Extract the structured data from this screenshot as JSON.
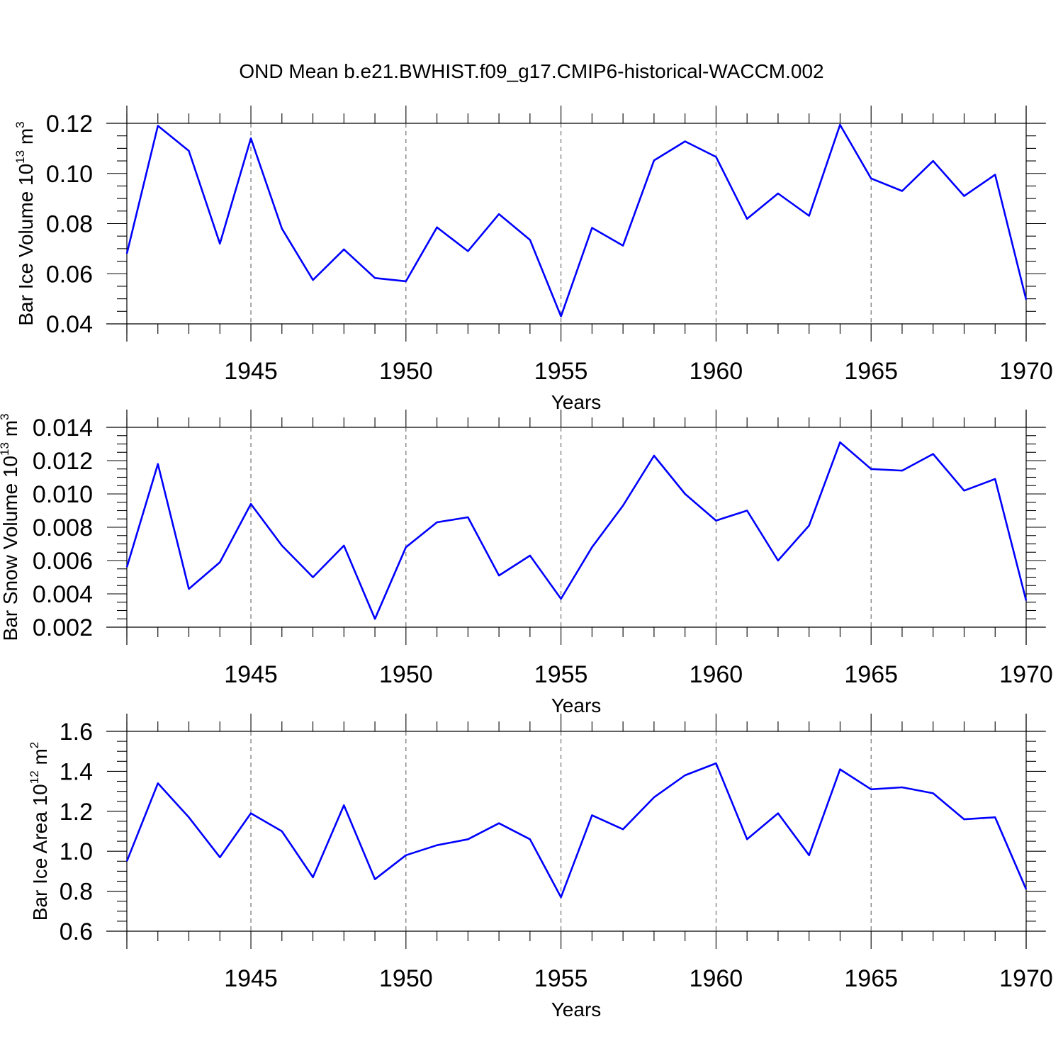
{
  "title": "OND Mean b.e21.BWHIST.f09_g17.CMIP6-historical-WACCM.002",
  "colors": {
    "line": "#0000ff",
    "axis": "#000000",
    "grid": "#555555"
  },
  "chart_data": [
    {
      "type": "line",
      "ylabel_main": "Bar Ice Volume 10",
      "ylabel_exp": "13",
      "ylabel_unit": " m",
      "ylabel_unit_exp": "3",
      "xlabel": "Years",
      "xlim": [
        1941,
        1970
      ],
      "ylim": [
        0.04,
        0.12
      ],
      "yticks": [
        0.04,
        0.06,
        0.08,
        0.1,
        0.12
      ],
      "yticklabels": [
        "0.04",
        "0.06",
        "0.08",
        "0.10",
        "0.12"
      ],
      "yminor": 0.005,
      "xticks": [
        1945,
        1950,
        1955,
        1960,
        1965,
        1970
      ],
      "xticklabels": [
        "1945",
        "1950",
        "1955",
        "1960",
        "1965",
        "1970"
      ],
      "gridx": [
        1945,
        1950,
        1955,
        1960,
        1965
      ],
      "x": [
        1941,
        1942,
        1943,
        1944,
        1945,
        1946,
        1947,
        1948,
        1949,
        1950,
        1951,
        1952,
        1953,
        1954,
        1955,
        1956,
        1957,
        1958,
        1959,
        1960,
        1961,
        1962,
        1963,
        1964,
        1965,
        1966,
        1967,
        1968,
        1969,
        1970
      ],
      "y": [
        0.068,
        0.119,
        0.109,
        0.072,
        0.114,
        0.078,
        0.0575,
        0.0697,
        0.0583,
        0.057,
        0.0785,
        0.069,
        0.0838,
        0.0735,
        0.043,
        0.0783,
        0.0712,
        0.1052,
        0.1128,
        0.1066,
        0.0819,
        0.092,
        0.0831,
        0.1194,
        0.098,
        0.093,
        0.105,
        0.091,
        0.0995,
        0.0497
      ]
    },
    {
      "type": "line",
      "ylabel_main": "Bar Snow Volume 10",
      "ylabel_exp": "13",
      "ylabel_unit": " m",
      "ylabel_unit_exp": "3",
      "xlabel": "Years",
      "xlim": [
        1941,
        1970
      ],
      "ylim": [
        0.002,
        0.014
      ],
      "yticks": [
        0.002,
        0.004,
        0.006,
        0.008,
        0.01,
        0.012,
        0.014
      ],
      "yticklabels": [
        "0.002",
        "0.004",
        "0.006",
        "0.008",
        "0.010",
        "0.012",
        "0.014"
      ],
      "yminor": 0.0005,
      "xticks": [
        1945,
        1950,
        1955,
        1960,
        1965,
        1970
      ],
      "xticklabels": [
        "1945",
        "1950",
        "1955",
        "1960",
        "1965",
        "1970"
      ],
      "gridx": [
        1945,
        1950,
        1955,
        1960,
        1965
      ],
      "x": [
        1941,
        1942,
        1943,
        1944,
        1945,
        1946,
        1947,
        1948,
        1949,
        1950,
        1951,
        1952,
        1953,
        1954,
        1955,
        1956,
        1957,
        1958,
        1959,
        1960,
        1961,
        1962,
        1963,
        1964,
        1965,
        1966,
        1967,
        1968,
        1969,
        1970
      ],
      "y": [
        0.0056,
        0.0118,
        0.0043,
        0.0059,
        0.0094,
        0.0069,
        0.005,
        0.0069,
        0.0025,
        0.0068,
        0.0083,
        0.0086,
        0.0051,
        0.0063,
        0.0037,
        0.0068,
        0.0093,
        0.0123,
        0.01,
        0.0084,
        0.009,
        0.006,
        0.0081,
        0.0131,
        0.0115,
        0.0114,
        0.0124,
        0.0102,
        0.0109,
        0.0036
      ]
    },
    {
      "type": "line",
      "ylabel_main": "Bar Ice Area 10",
      "ylabel_exp": "12",
      "ylabel_unit": " m",
      "ylabel_unit_exp": "2",
      "xlabel": "Years",
      "xlim": [
        1941,
        1970
      ],
      "ylim": [
        0.6,
        1.6
      ],
      "yticks": [
        0.6,
        0.8,
        1.0,
        1.2,
        1.4,
        1.6
      ],
      "yticklabels": [
        "0.6",
        "0.8",
        "1.0",
        "1.2",
        "1.4",
        "1.6"
      ],
      "yminor": 0.05,
      "xticks": [
        1945,
        1950,
        1955,
        1960,
        1965,
        1970
      ],
      "xticklabels": [
        "1945",
        "1950",
        "1955",
        "1960",
        "1965",
        "1970"
      ],
      "gridx": [
        1945,
        1950,
        1955,
        1960,
        1965
      ],
      "x": [
        1941,
        1942,
        1943,
        1944,
        1945,
        1946,
        1947,
        1948,
        1949,
        1950,
        1951,
        1952,
        1953,
        1954,
        1955,
        1956,
        1957,
        1958,
        1959,
        1960,
        1961,
        1962,
        1963,
        1964,
        1965,
        1966,
        1967,
        1968,
        1969,
        1970
      ],
      "y": [
        0.95,
        1.34,
        1.17,
        0.97,
        1.19,
        1.1,
        0.87,
        1.23,
        0.86,
        0.98,
        1.03,
        1.06,
        1.14,
        1.06,
        0.77,
        1.18,
        1.11,
        1.27,
        1.38,
        1.44,
        1.06,
        1.19,
        0.98,
        1.41,
        1.31,
        1.32,
        1.29,
        1.16,
        1.17,
        0.81
      ]
    }
  ]
}
